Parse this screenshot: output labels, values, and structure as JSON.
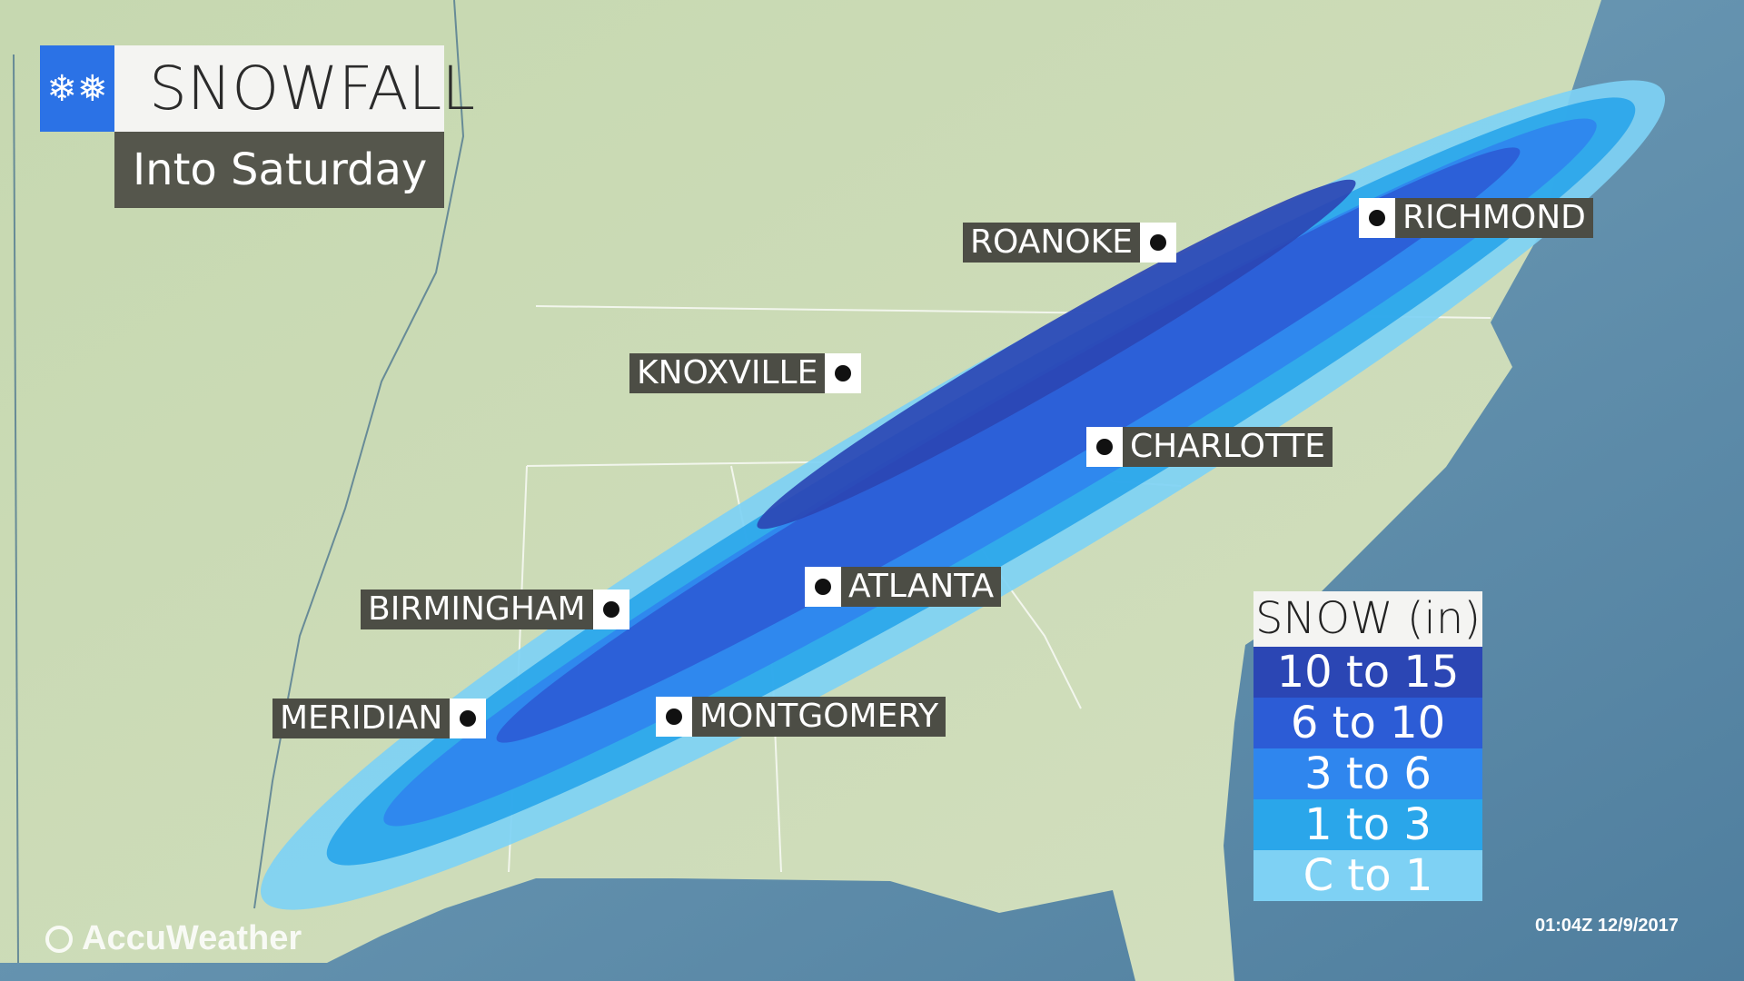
{
  "header": {
    "title": "SNOWFALL",
    "subtitle": "Into Saturday",
    "icon": "snowflakes-icon"
  },
  "cities": [
    {
      "name": "ROANOKE",
      "dot": "right"
    },
    {
      "name": "RICHMOND",
      "dot": "left"
    },
    {
      "name": "KNOXVILLE",
      "dot": "right"
    },
    {
      "name": "CHARLOTTE",
      "dot": "left"
    },
    {
      "name": "ATLANTA",
      "dot": "left"
    },
    {
      "name": "BIRMINGHAM",
      "dot": "right"
    },
    {
      "name": "MERIDIAN",
      "dot": "right"
    },
    {
      "name": "MONTGOMERY",
      "dot": "left"
    }
  ],
  "legend": {
    "title": "SNOW (in)",
    "items": [
      {
        "label": "10 to 15",
        "color": "#2b46b4"
      },
      {
        "label": "6 to 10",
        "color": "#2c5cd6"
      },
      {
        "label": "3 to 6",
        "color": "#2f86ee"
      },
      {
        "label": "1 to 3",
        "color": "#2aa6ea"
      },
      {
        "label": "C to 1",
        "color": "#7ed1f4"
      }
    ]
  },
  "timestamp": "01:04Z 12/9/2017",
  "logo": "AccuWeather",
  "colors": {
    "land": "#c8d8b2",
    "ocean": "#5b8aa8",
    "label_bg": "#4c4d45",
    "title_icon_bg": "#2b72e6"
  }
}
